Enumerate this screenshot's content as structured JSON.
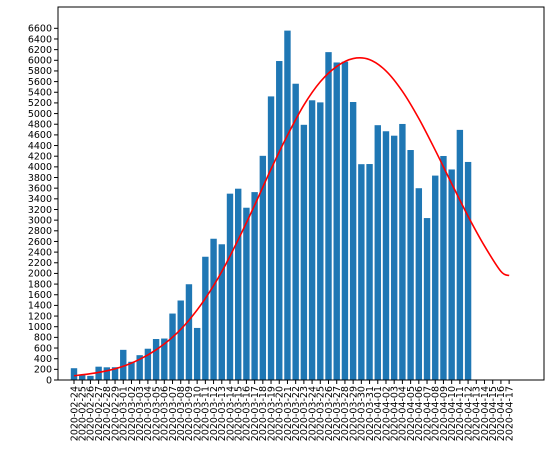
{
  "chart_data": {
    "type": "bar",
    "title": "",
    "xlabel": "",
    "ylabel": "",
    "ylim": [
      0,
      7000
    ],
    "yticks": [
      0,
      200,
      400,
      600,
      800,
      1000,
      1200,
      1400,
      1600,
      1800,
      2000,
      2200,
      2400,
      2600,
      2800,
      3000,
      3200,
      3400,
      3600,
      3800,
      4000,
      4200,
      4400,
      4600,
      4800,
      5000,
      5200,
      5400,
      5600,
      5800,
      6000,
      6200,
      6400,
      6600
    ],
    "categories": [
      "2020-02-24",
      "2020-02-25",
      "2020-02-26",
      "2020-02-27",
      "2020-02-28",
      "2020-02-29",
      "2020-03-01",
      "2020-03-02",
      "2020-03-03",
      "2020-03-04",
      "2020-03-05",
      "2020-03-06",
      "2020-03-07",
      "2020-03-08",
      "2020-03-09",
      "2020-03-10",
      "2020-03-11",
      "2020-03-12",
      "2020-03-13",
      "2020-03-14",
      "2020-03-15",
      "2020-03-16",
      "2020-03-17",
      "2020-03-18",
      "2020-03-19",
      "2020-03-20",
      "2020-03-21",
      "2020-03-22",
      "2020-03-23",
      "2020-03-24",
      "2020-03-25",
      "2020-03-26",
      "2020-03-27",
      "2020-03-28",
      "2020-03-29",
      "2020-03-30",
      "2020-03-31",
      "2020-04-01",
      "2020-04-02",
      "2020-04-03",
      "2020-04-04",
      "2020-04-05",
      "2020-04-06",
      "2020-04-07",
      "2020-04-08",
      "2020-04-09",
      "2020-04-10",
      "2020-04-11",
      "2020-04-12",
      "2020-04-13",
      "2020-04-14",
      "2020-04-15",
      "2020-04-16",
      "2020-04-17"
    ],
    "series": [
      {
        "type": "bar",
        "color": "#1f77b4",
        "values": [
          221,
          93,
          78,
          250,
          238,
          240,
          566,
          342,
          466,
          587,
          769,
          778,
          1247,
          1492,
          1797,
          977,
          2313,
          2651,
          2547,
          3497,
          3590,
          3233,
          3526,
          4207,
          5322,
          5986,
          6557,
          5560,
          4789,
          5249,
          5210,
          6153,
          5959,
          5974,
          5217,
          4050,
          4053,
          4782,
          4668,
          4585,
          4805,
          4316,
          3599,
          3039,
          3836,
          4204,
          3951,
          4694,
          4092,
          0,
          0,
          0,
          0,
          0
        ]
      },
      {
        "type": "line",
        "color": "#ff0000",
        "x": [
          "2020-02-24",
          "2020-02-26",
          "2020-02-28",
          "2020-03-01",
          "2020-03-03",
          "2020-03-05",
          "2020-03-07",
          "2020-03-09",
          "2020-03-11",
          "2020-03-13",
          "2020-03-15",
          "2020-03-17",
          "2020-03-19",
          "2020-03-21",
          "2020-03-23",
          "2020-03-25",
          "2020-03-27",
          "2020-03-29",
          "2020-03-31",
          "2020-04-02",
          "2020-04-04",
          "2020-04-06",
          "2020-04-08",
          "2020-04-10",
          "2020-04-12",
          "2020-04-14",
          "2020-04-16",
          "2020-04-17"
        ],
        "values": [
          80,
          118,
          172,
          258,
          388,
          567,
          803,
          1122,
          1530,
          2033,
          2633,
          3281,
          3958,
          4592,
          5160,
          5597,
          5885,
          6033,
          6013,
          5801,
          5418,
          4907,
          4313,
          3686,
          3074,
          2516,
          2038,
          1960
        ]
      }
    ],
    "grid": false,
    "legend": "none"
  }
}
